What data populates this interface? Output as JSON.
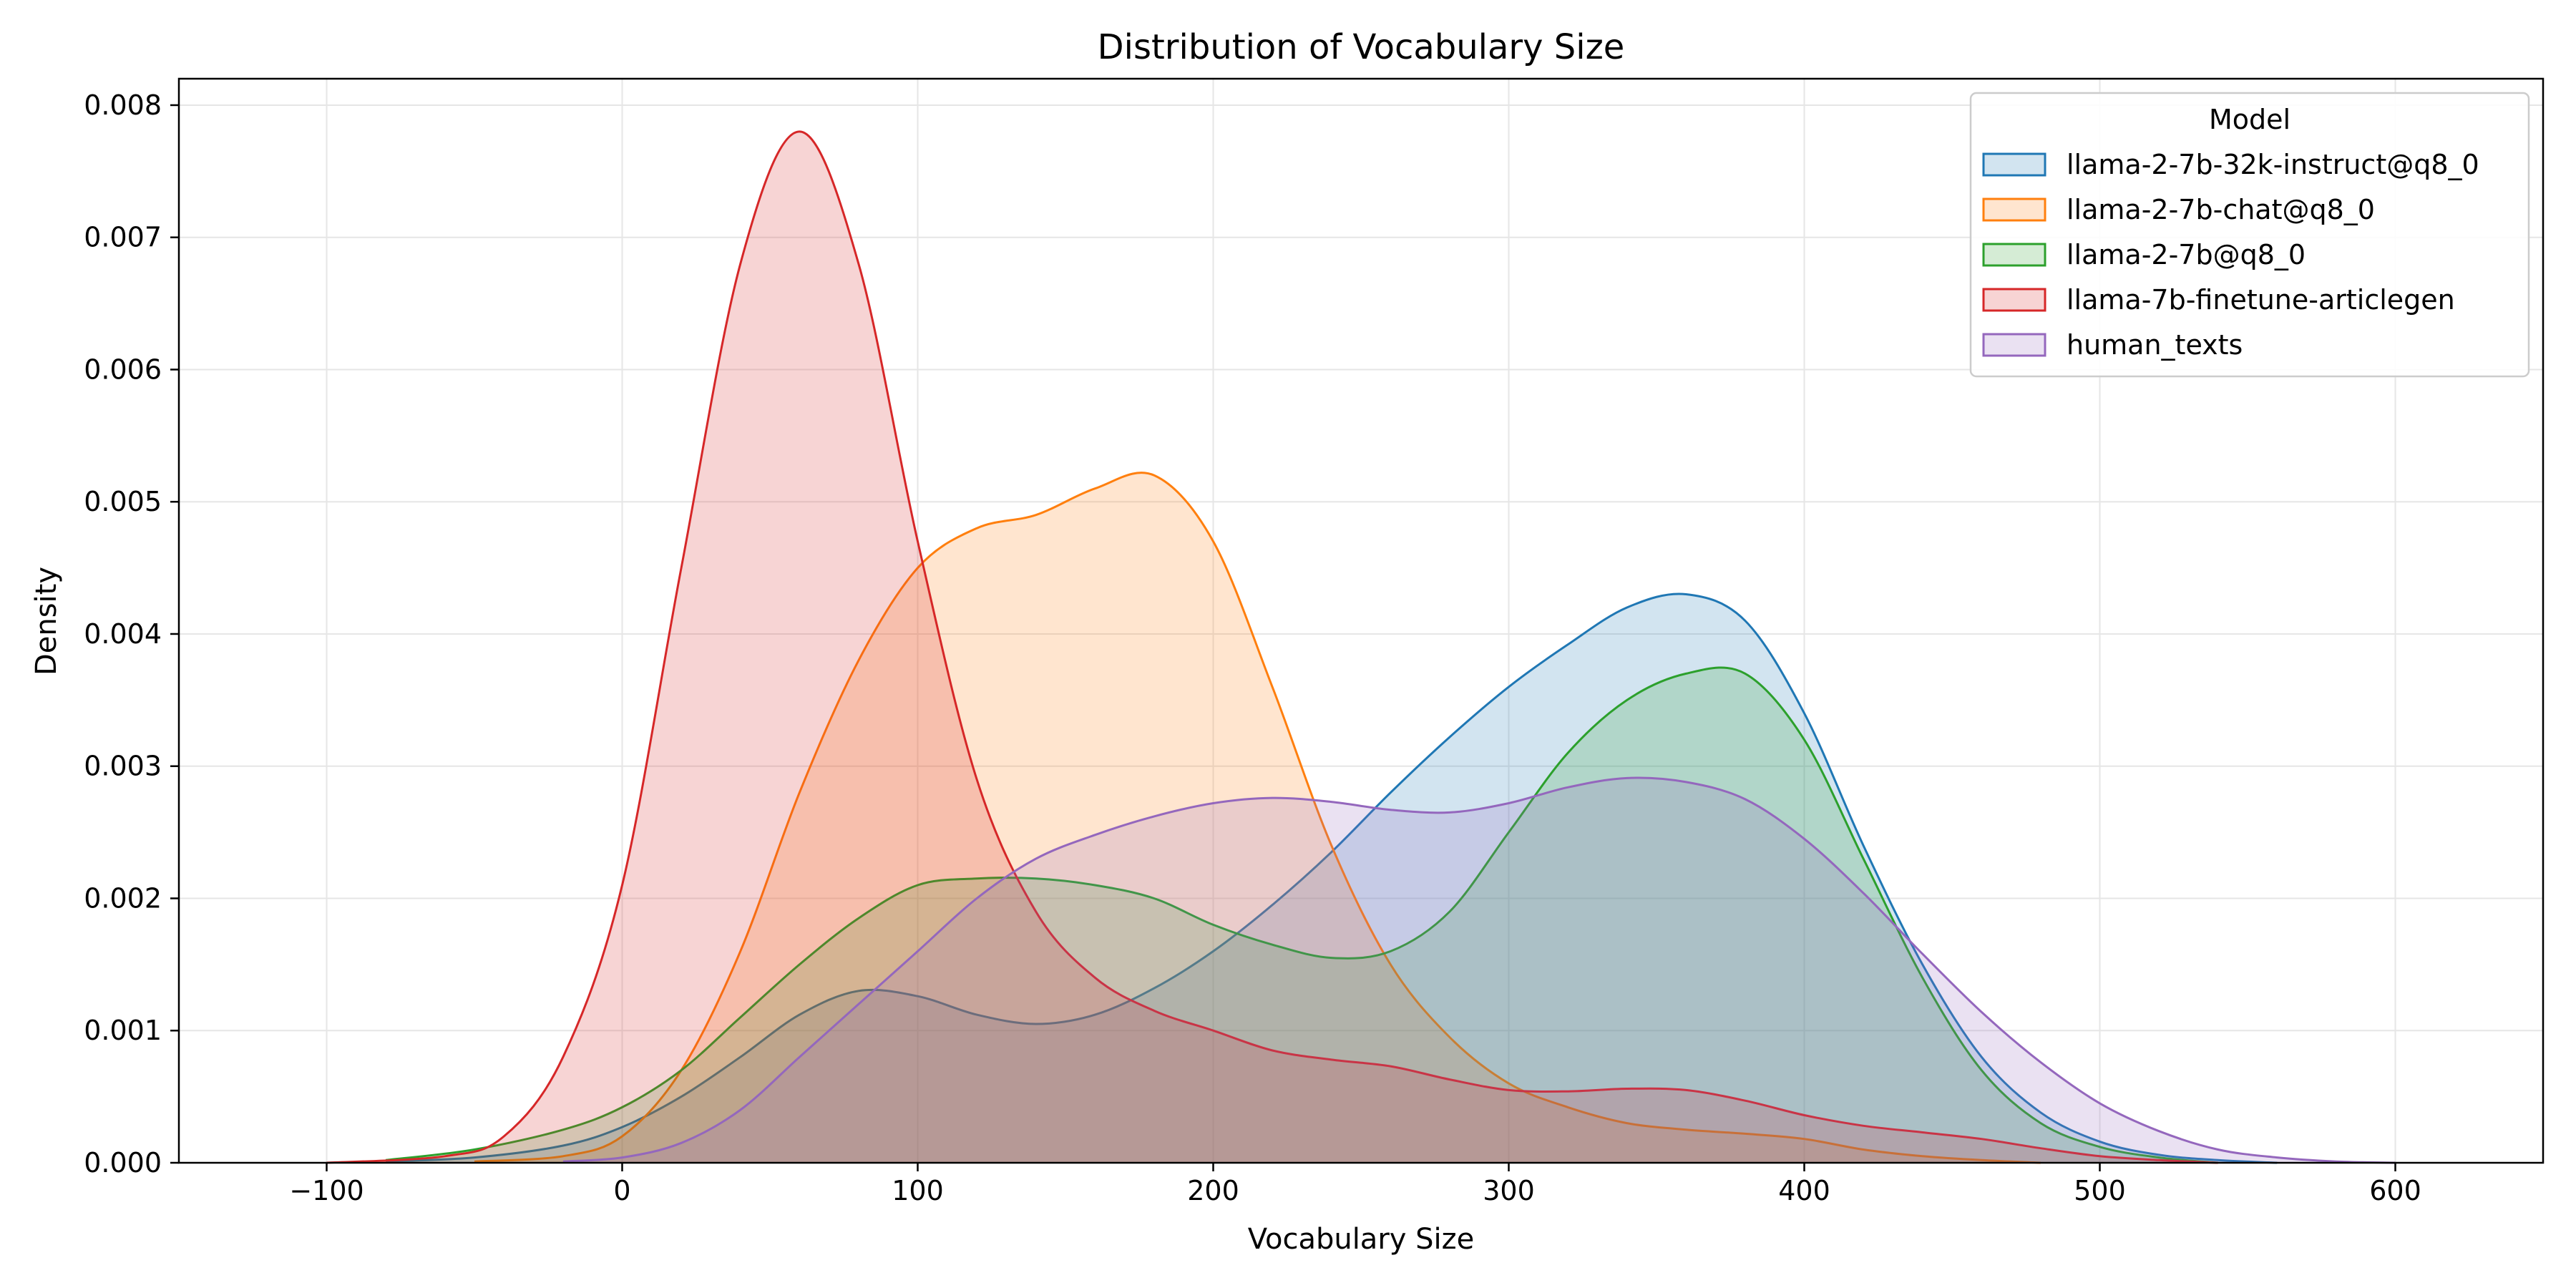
{
  "chart_data": {
    "type": "area",
    "title": "Distribution of Vocabulary Size",
    "xlabel": "Vocabulary Size",
    "ylabel": "Density",
    "xlim": [
      -150,
      650
    ],
    "ylim": [
      0,
      0.0082
    ],
    "xticks": [
      -100,
      0,
      100,
      200,
      300,
      400,
      500,
      600
    ],
    "xtick_labels": [
      "−100",
      "0",
      "100",
      "200",
      "300",
      "400",
      "500",
      "600"
    ],
    "yticks": [
      0,
      0.001,
      0.002,
      0.003,
      0.004,
      0.005,
      0.006,
      0.007,
      0.008
    ],
    "ytick_labels": [
      "0.000",
      "0.001",
      "0.002",
      "0.003",
      "0.004",
      "0.005",
      "0.006",
      "0.007",
      "0.008"
    ],
    "grid": true,
    "legend": {
      "title": "Model",
      "placement": "top-right"
    },
    "series": [
      {
        "name": "llama-2-7b-32k-instruct@q8_0",
        "color": "#1f77b4",
        "x": [
          -80,
          -50,
          -20,
          0,
          20,
          40,
          60,
          80,
          100,
          120,
          140,
          160,
          180,
          200,
          220,
          240,
          260,
          280,
          300,
          320,
          340,
          360,
          380,
          400,
          420,
          440,
          460,
          480,
          500,
          520,
          540,
          560
        ],
        "y": [
          1e-05,
          4e-05,
          0.00013,
          0.00027,
          0.0005,
          0.0008,
          0.00112,
          0.0013,
          0.00126,
          0.00112,
          0.00105,
          0.00112,
          0.00132,
          0.0016,
          0.00195,
          0.00235,
          0.0028,
          0.00322,
          0.0036,
          0.00392,
          0.0042,
          0.0043,
          0.0041,
          0.0034,
          0.0024,
          0.0015,
          0.0008,
          0.00038,
          0.00016,
          6e-05,
          2e-05,
          0.0
        ]
      },
      {
        "name": "llama-2-7b-chat@q8_0",
        "color": "#ff7f0e",
        "x": [
          -50,
          -20,
          0,
          20,
          40,
          60,
          80,
          100,
          120,
          140,
          160,
          180,
          200,
          220,
          240,
          260,
          280,
          300,
          320,
          340,
          360,
          380,
          400,
          420,
          440,
          460,
          480
        ],
        "y": [
          1e-05,
          5e-05,
          0.0002,
          0.0007,
          0.0016,
          0.0028,
          0.0038,
          0.0045,
          0.0048,
          0.0049,
          0.0051,
          0.0052,
          0.0047,
          0.0036,
          0.0024,
          0.0015,
          0.00095,
          0.0006,
          0.00042,
          0.0003,
          0.00025,
          0.00022,
          0.00018,
          0.0001,
          5e-05,
          2e-05,
          0.0
        ]
      },
      {
        "name": "llama-2-7b@q8_0",
        "color": "#2ca02c",
        "x": [
          -80,
          -50,
          -20,
          0,
          20,
          40,
          60,
          80,
          100,
          120,
          140,
          160,
          180,
          200,
          220,
          240,
          260,
          280,
          300,
          320,
          340,
          360,
          380,
          400,
          420,
          440,
          460,
          480,
          500,
          520,
          540
        ],
        "y": [
          2e-05,
          0.0001,
          0.00025,
          0.00042,
          0.0007,
          0.0011,
          0.0015,
          0.00185,
          0.0021,
          0.00215,
          0.00215,
          0.0021,
          0.002,
          0.0018,
          0.00165,
          0.00155,
          0.0016,
          0.0019,
          0.0025,
          0.0031,
          0.0035,
          0.0037,
          0.0037,
          0.0032,
          0.0023,
          0.0014,
          0.0007,
          0.0003,
          0.00012,
          4e-05,
          0.0
        ]
      },
      {
        "name": "llama-7b-finetune-articlegen",
        "color": "#d62728",
        "x": [
          -100,
          -60,
          -40,
          -20,
          0,
          20,
          40,
          60,
          80,
          100,
          120,
          140,
          160,
          180,
          200,
          220,
          240,
          260,
          280,
          300,
          320,
          340,
          360,
          380,
          400,
          420,
          440,
          460,
          480,
          500,
          520,
          540
        ],
        "y": [
          0.0,
          5e-05,
          0.0002,
          0.0008,
          0.0021,
          0.0045,
          0.0068,
          0.0078,
          0.0068,
          0.0047,
          0.0029,
          0.0019,
          0.0014,
          0.00115,
          0.001,
          0.00085,
          0.00078,
          0.00073,
          0.00063,
          0.00055,
          0.00054,
          0.00056,
          0.00055,
          0.00047,
          0.00036,
          0.00028,
          0.00023,
          0.00018,
          0.00011,
          5e-05,
          2e-05,
          0.0
        ]
      },
      {
        "name": "human_texts",
        "color": "#9467bd",
        "x": [
          -20,
          0,
          20,
          40,
          60,
          80,
          100,
          120,
          140,
          160,
          180,
          200,
          220,
          240,
          260,
          280,
          300,
          320,
          340,
          360,
          380,
          400,
          420,
          440,
          460,
          480,
          500,
          520,
          540,
          560,
          580,
          600
        ],
        "y": [
          1e-05,
          4e-05,
          0.00015,
          0.0004,
          0.0008,
          0.0012,
          0.0016,
          0.002,
          0.0023,
          0.00248,
          0.00262,
          0.00272,
          0.00276,
          0.00273,
          0.00267,
          0.00265,
          0.00272,
          0.00284,
          0.00291,
          0.00288,
          0.00275,
          0.00245,
          0.00204,
          0.00158,
          0.00114,
          0.00076,
          0.00045,
          0.00024,
          0.0001,
          4e-05,
          1e-05,
          0.0
        ]
      }
    ]
  }
}
